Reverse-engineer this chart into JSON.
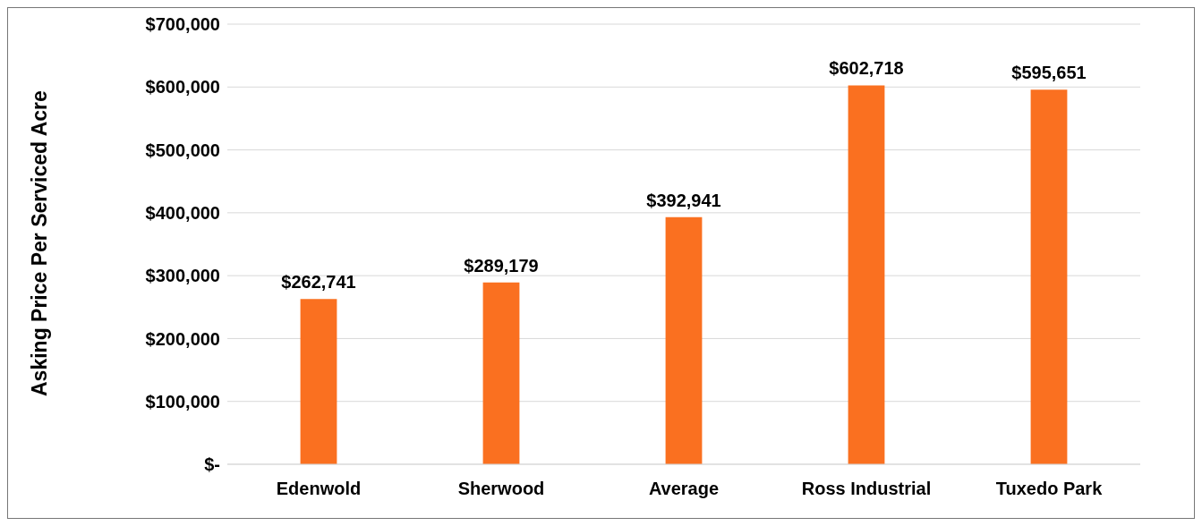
{
  "chart_data": {
    "type": "bar",
    "ylabel": "Asking Price Per Serviced Acre",
    "categories": [
      "Edenwold",
      "Sherwood",
      "Average",
      "Ross Industrial",
      "Tuxedo Park"
    ],
    "values": [
      262741,
      289179,
      392941,
      602718,
      595651
    ],
    "value_labels": [
      "$262,741",
      "$289,179",
      "$392,941",
      "$602,718",
      "$595,651"
    ],
    "color": "#fa7020",
    "ylim": [
      0,
      700000
    ],
    "yticks": [
      {
        "value": 0,
        "label": "$-"
      },
      {
        "value": 100000,
        "label": "$100,000"
      },
      {
        "value": 200000,
        "label": "$200,000"
      },
      {
        "value": 300000,
        "label": "$300,000"
      },
      {
        "value": 400000,
        "label": "$400,000"
      },
      {
        "value": 500000,
        "label": "$500,000"
      },
      {
        "value": 600000,
        "label": "$600,000"
      },
      {
        "value": 700000,
        "label": "$700,000"
      }
    ],
    "grid": "y",
    "legend": false
  }
}
